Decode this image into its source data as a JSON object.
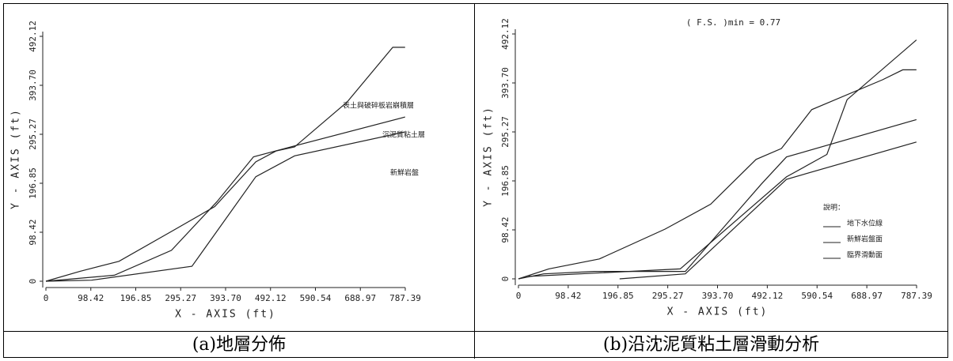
{
  "chart_data": [
    {
      "type": "line",
      "xlim": [
        0,
        787.39
      ],
      "ylim": [
        0,
        492.12
      ],
      "xticks": [
        0,
        98.42,
        196.85,
        295.27,
        {
          "value": 393.7,
          "label": "393.70"
        },
        492.12,
        590.54,
        688.97,
        787.39
      ],
      "yticks": [
        0,
        98.42,
        196.85,
        295.27,
        {
          "value": 393.7,
          "label": "393.70"
        },
        492.12
      ],
      "xlabel": "X - AXIS  (ft)",
      "ylabel": "Y - AXIS  (ft)",
      "series": [
        {
          "color": "#222",
          "x": [
            0,
            75,
            160,
            275,
            370,
            460,
            505,
            545,
            660,
            760,
            787
          ],
          "values": [
            0,
            20,
            40,
            100,
            150,
            240,
            262,
            270,
            360,
            470,
            470
          ]
        },
        {
          "color": "#222",
          "x": [
            0,
            150,
            275,
            375,
            455,
            545,
            787
          ],
          "values": [
            0,
            12,
            62,
            160,
            250,
            272,
            330
          ]
        },
        {
          "color": "#222",
          "x": [
            0,
            100,
            320,
            460,
            545,
            787
          ],
          "values": [
            0,
            2,
            30,
            210,
            252,
            300
          ]
        }
      ],
      "annotations": [
        "表土與破碎板岩崩積層",
        "沉泥質粘土層",
        "新鮮岩盤"
      ],
      "caption": "(a)地層分佈"
    },
    {
      "type": "line",
      "title": "( F.S. )min = 0.77",
      "xlim": [
        0,
        787.39
      ],
      "ylim": [
        0,
        492.12
      ],
      "xticks": [
        0,
        98.42,
        196.85,
        295.27,
        {
          "value": 393.7,
          "label": "393.70"
        },
        492.12,
        590.54,
        688.97,
        787.39
      ],
      "yticks": [
        0,
        98.42,
        196.85,
        295.27,
        {
          "value": 393.7,
          "label": "393.70"
        },
        492.12
      ],
      "xlabel": "X - AXIS  (ft)",
      "ylabel": "Y - AXIS  (ft)",
      "legend_title": "說明：",
      "series": [
        {
          "color": "#222",
          "x": [
            0,
            60,
            160,
            290,
            380,
            470,
            520,
            580,
            720,
            760,
            787
          ],
          "values": [
            0,
            20,
            40,
            100,
            150,
            240,
            262,
            340,
            400,
            420,
            420
          ]
        },
        {
          "name": "地下水位線",
          "color": "#222",
          "x": [
            0,
            50,
            150,
            330,
            480,
            530,
            787
          ],
          "values": [
            0,
            10,
            15,
            15,
            190,
            245,
            320
          ]
        },
        {
          "name": "新鮮岩盤面",
          "color": "#222",
          "x": [
            200,
            330,
            530,
            787
          ],
          "values": [
            0,
            10,
            200,
            275
          ]
        },
        {
          "name": "臨界滑動面",
          "color": "#222",
          "x": [
            20,
            320,
            530,
            610,
            650,
            787
          ],
          "values": [
            5,
            20,
            205,
            250,
            360,
            480
          ]
        }
      ],
      "caption": "(b)沿沈泥質粘土層滑動分析"
    }
  ]
}
